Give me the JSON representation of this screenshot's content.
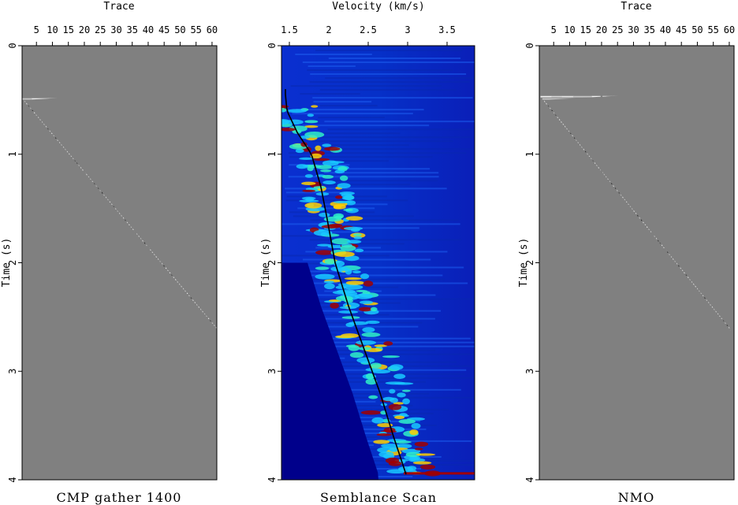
{
  "panels": [
    {
      "id": "cmp",
      "title": "CMP gather 1400",
      "top_axis_label": "Trace",
      "top_ticks": [
        "5",
        "10",
        "15",
        "20",
        "25",
        "30",
        "35",
        "40",
        "45",
        "50",
        "55",
        "60"
      ],
      "left_axis_label": "Time (s)",
      "left_ticks": [
        "0",
        "1",
        "2",
        "3",
        "4"
      ]
    },
    {
      "id": "semblance",
      "title": "Semblance Scan",
      "top_axis_label": "Velocity (km/s)",
      "top_ticks": [
        "1.5",
        "2",
        "2.5",
        "3",
        "3.5"
      ],
      "left_axis_label": "Time (s)",
      "left_ticks": [
        "0",
        "1",
        "2",
        "3",
        "4"
      ]
    },
    {
      "id": "nmo",
      "title": "NMO",
      "top_axis_label": "Trace",
      "top_ticks": [
        "5",
        "10",
        "15",
        "20",
        "25",
        "30",
        "35",
        "40",
        "45",
        "50",
        "55",
        "60"
      ],
      "left_axis_label": "Time (s)",
      "left_ticks": [
        "0",
        "1",
        "2",
        "3",
        "4"
      ]
    }
  ],
  "colors": {
    "seismic_background": "#808080",
    "semblance_low": "#00008b",
    "semblance_high": "#8b0000",
    "velocity_pick": "#000000"
  }
}
